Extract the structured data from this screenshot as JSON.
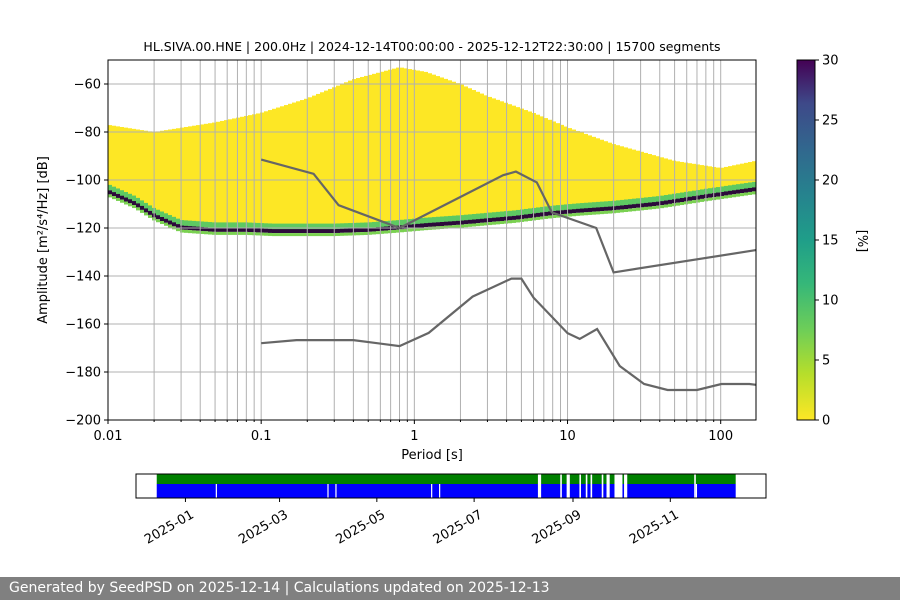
{
  "title": "HL.SIVA.00.HNE | 200.0Hz | 2024-12-14T00:00:00 - 2025-12-12T22:30:00 | 15700 segments",
  "footer": "Generated by SeedPSD on 2025-12-14 | Calculations updated on 2025-12-13",
  "colors": {
    "nlnm_nhnm": "#666666",
    "availability_data": "#008000",
    "availability_gaps": "#0000ff",
    "grid": "#b0b0b0"
  },
  "chart_data": [
    {
      "type": "heatmap",
      "title": "HL.SIVA.00.HNE | 200.0Hz | 2024-12-14T00:00:00 - 2025-12-12T22:30:00 | 15700 segments",
      "xlabel": "Period [s]",
      "ylabel": "Amplitude [m²/s⁴/Hz] [dB]",
      "xscale": "log",
      "xlim": [
        0.01,
        170
      ],
      "ylim": [
        -200,
        -50
      ],
      "xticks": [
        "0.01",
        "0.1",
        "1",
        "10",
        "100"
      ],
      "yticks": [
        "-60",
        "-80",
        "-100",
        "-120",
        "-140",
        "-160",
        "-180",
        "-200"
      ],
      "grid": true,
      "colorbar": {
        "label": "[%]",
        "range": [
          0,
          30
        ],
        "ticks": [
          "0",
          "5",
          "10",
          "15",
          "20",
          "25",
          "30"
        ],
        "colormap": "viridis_r"
      },
      "psd_mode": {
        "period": [
          0.01,
          0.015,
          0.02,
          0.03,
          0.05,
          0.08,
          0.12,
          0.2,
          0.3,
          0.5,
          0.8,
          1.2,
          2,
          3,
          4.5,
          6,
          8,
          12,
          20,
          40,
          80,
          170
        ],
        "db": [
          -105,
          -110,
          -115,
          -120,
          -121,
          -121,
          -121.5,
          -121.5,
          -121.5,
          -121,
          -120,
          -119,
          -118,
          -117,
          -116,
          -115,
          -114,
          -113,
          -112,
          -110,
          -107,
          -104
        ]
      },
      "psd_upper_envelope": {
        "period": [
          0.01,
          0.02,
          0.05,
          0.1,
          0.2,
          0.4,
          0.8,
          1.2,
          2,
          3,
          6,
          10,
          20,
          50,
          100,
          170
        ],
        "db": [
          -77,
          -80,
          -76,
          -72,
          -66,
          -58,
          -53,
          -55,
          -60,
          -65,
          -72,
          -78,
          -85,
          -92,
          -95,
          -92
        ]
      },
      "nhnm": {
        "period": [
          0.1,
          0.22,
          0.32,
          0.8,
          3.8,
          4.6,
          6.3,
          7.9,
          15.4,
          20,
          354.8
        ],
        "db": [
          -91.5,
          -97.4,
          -110.5,
          -120,
          -98,
          -96.5,
          -101,
          -113.5,
          -120,
          -138.5,
          -126
        ]
      },
      "nlnm": {
        "period": [
          0.1,
          0.17,
          0.4,
          0.8,
          1.24,
          2.4,
          4.3,
          5.0,
          6.0,
          10,
          12,
          15.6,
          21.9,
          31.6,
          45,
          70,
          101,
          154,
          328
        ],
        "db": [
          -168,
          -166.7,
          -166.7,
          -169.2,
          -163.7,
          -148.6,
          -141.1,
          -141.1,
          -149,
          -163.8,
          -166.2,
          -162.1,
          -177.5,
          -185,
          -187.5,
          -187.5,
          -185,
          -185,
          -187.5
        ]
      }
    },
    {
      "type": "timeline",
      "title": "",
      "x_range": [
        "2024-12-01",
        "2025-12-31"
      ],
      "xticks": [
        "2025-01",
        "2025-03",
        "2025-05",
        "2025-07",
        "2025-09",
        "2025-11"
      ],
      "data_span": [
        "2024-12-14",
        "2025-12-12"
      ],
      "gaps": [
        [
          "2025-08-10",
          "2025-08-12"
        ],
        [
          "2025-08-24",
          "2025-08-25"
        ],
        [
          "2025-08-28",
          "2025-08-30"
        ],
        [
          "2025-09-05",
          "2025-09-06"
        ],
        [
          "2025-09-09",
          "2025-09-10"
        ],
        [
          "2025-09-12",
          "2025-09-13"
        ],
        [
          "2025-09-19",
          "2025-09-20"
        ],
        [
          "2025-09-22",
          "2025-09-24"
        ],
        [
          "2025-09-27",
          "2025-10-02"
        ],
        [
          "2025-10-03",
          "2025-10-05"
        ],
        [
          "2025-11-16",
          "2025-11-17"
        ]
      ]
    }
  ]
}
